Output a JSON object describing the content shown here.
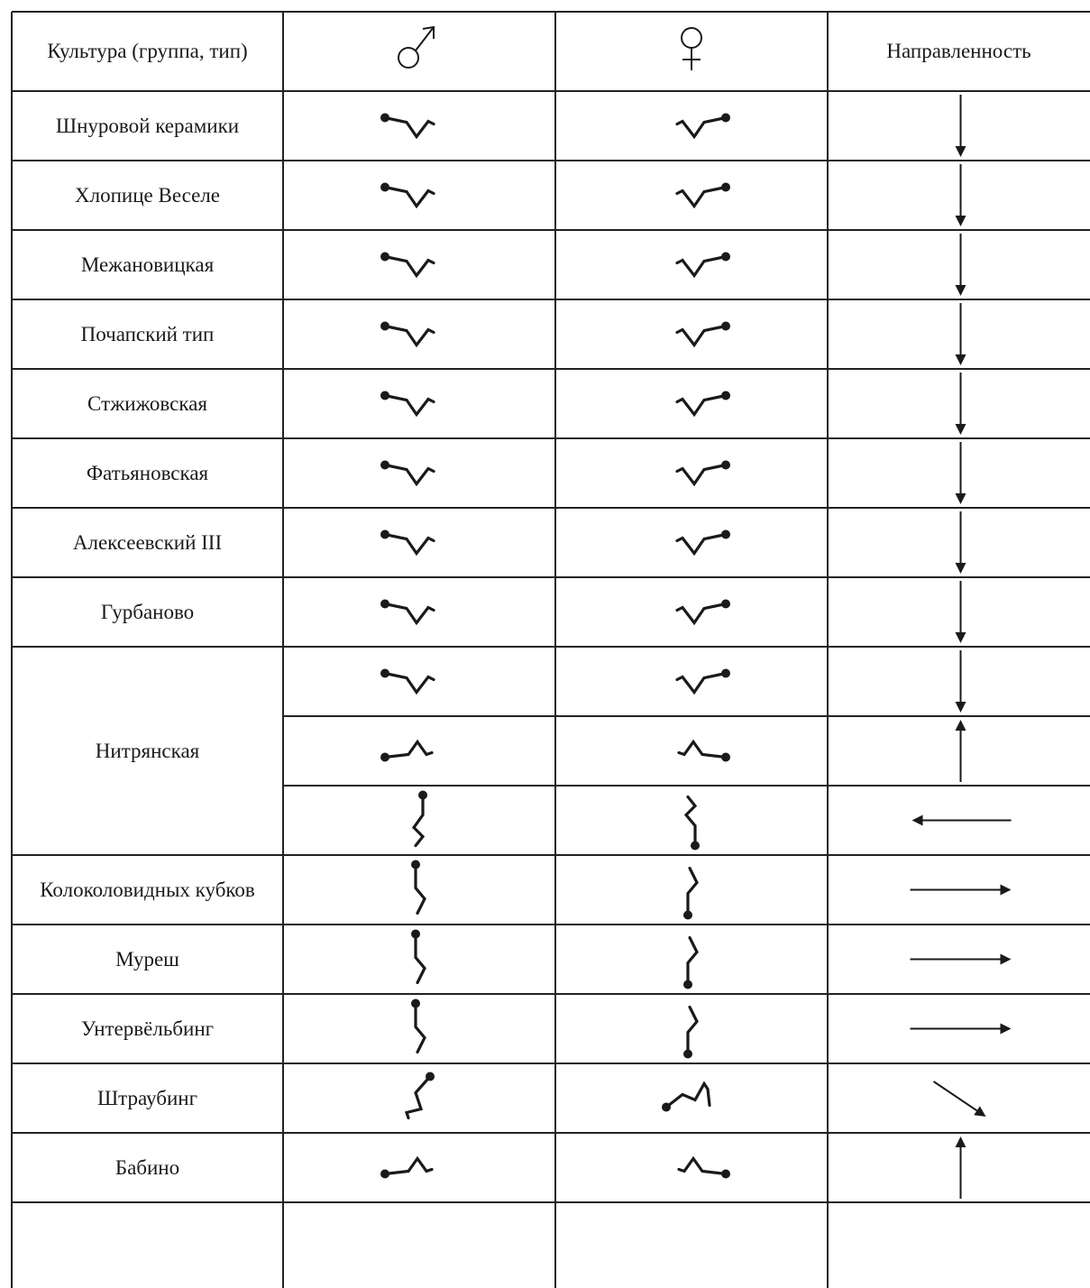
{
  "header": {
    "culture": "Культура (группа, тип)",
    "male_symbol": "♂",
    "female_symbol": "♀",
    "direction": "Направленность"
  },
  "icons": {
    "male_header": "male-symbol-icon",
    "female_header": "female-symbol-icon",
    "burial_glyph": "burial-posture-icon",
    "direction_arrow": "direction-arrow-icon"
  },
  "colors": {
    "ink": "#1a1a1a",
    "grid": "#222222",
    "background": "#ffffff"
  },
  "rows": [
    {
      "culture": "Шнуровой керамики",
      "male": "h-down",
      "female": "h-down",
      "direction": "down"
    },
    {
      "culture": "Хлопице Веселе",
      "male": "h-down",
      "female": "h-down",
      "direction": "down"
    },
    {
      "culture": "Межановицкая",
      "male": "h-down",
      "female": "h-down",
      "direction": "down"
    },
    {
      "culture": "Почапский тип",
      "male": "h-down",
      "female": "h-down",
      "direction": "down"
    },
    {
      "culture": "Стжижовская",
      "male": "h-down",
      "female": "h-down",
      "direction": "down"
    },
    {
      "culture": "Фатьяновская",
      "male": "h-down",
      "female": "h-down",
      "direction": "down"
    },
    {
      "culture": "Алексеевский III",
      "male": "h-down",
      "female": "h-down",
      "direction": "down"
    },
    {
      "culture": "Гурбаново",
      "male": "h-down",
      "female": "h-down",
      "direction": "down"
    },
    {
      "culture": "Нитрянская",
      "subrows": [
        {
          "male": "h-down",
          "female": "h-down",
          "direction": "down"
        },
        {
          "male": "h-up",
          "female": "h-up",
          "direction": "up"
        },
        {
          "male": "v-left",
          "female": "v-left",
          "direction": "left"
        }
      ]
    },
    {
      "culture": "Колоколовидных кубков",
      "male": "v-right",
      "female": "v-right",
      "direction": "right"
    },
    {
      "culture": "Муреш",
      "male": "v-right",
      "female": "v-right",
      "direction": "right"
    },
    {
      "culture": "Унтервёльбинг",
      "male": "v-right",
      "female": "v-right",
      "direction": "right"
    },
    {
      "culture": "Штраубинг",
      "male": "diag",
      "female": "diag",
      "direction": "down-right"
    },
    {
      "culture": "Бабино",
      "male": "h-up",
      "female": "h-up",
      "direction": "up"
    }
  ]
}
